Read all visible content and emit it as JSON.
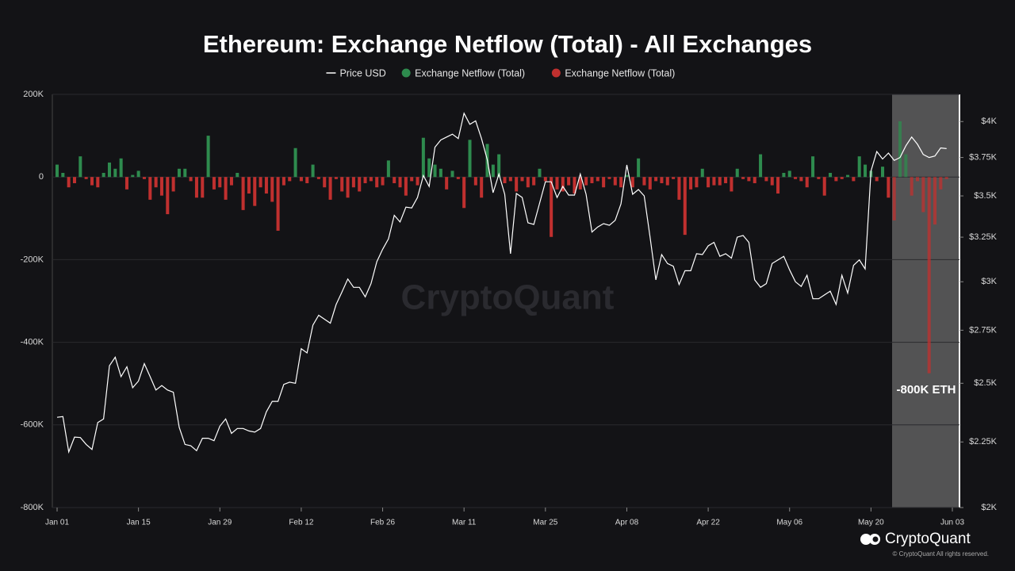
{
  "chart_data": {
    "type": "bar-line",
    "title": "Ethereum: Exchange Netflow (Total) - All Exchanges",
    "annotation": "-800K ETH",
    "watermark": "CryptoQuant",
    "brand": "CryptoQuant",
    "copyright": "© CryptoQuant All rights reserved.",
    "grid": true,
    "y2log": true,
    "categories": [
      "Jan 01",
      null,
      null,
      null,
      null,
      null,
      null,
      null,
      null,
      null,
      null,
      null,
      null,
      null,
      "Jan 15",
      null,
      null,
      null,
      null,
      null,
      null,
      null,
      null,
      null,
      null,
      null,
      null,
      null,
      "Jan 29",
      null,
      null,
      null,
      null,
      null,
      null,
      null,
      null,
      null,
      null,
      null,
      null,
      null,
      "Feb 12",
      null,
      null,
      null,
      null,
      null,
      null,
      null,
      null,
      null,
      null,
      null,
      null,
      null,
      "Feb 26",
      null,
      null,
      null,
      null,
      null,
      null,
      null,
      null,
      null,
      null,
      null,
      null,
      null,
      "Mar 11",
      null,
      null,
      null,
      null,
      null,
      null,
      null,
      null,
      null,
      null,
      null,
      null,
      null,
      "Mar 25",
      null,
      null,
      null,
      null,
      null,
      null,
      null,
      null,
      null,
      null,
      null,
      null,
      null,
      "Apr 08",
      null,
      null,
      null,
      null,
      null,
      null,
      null,
      null,
      null,
      null,
      null,
      null,
      null,
      "Apr 22",
      null,
      null,
      null,
      null,
      null,
      null,
      null,
      null,
      null,
      null,
      null,
      null,
      null,
      "May 06",
      null,
      null,
      null,
      null,
      null,
      null,
      null,
      null,
      null,
      null,
      null,
      null,
      null,
      "May 20",
      null,
      null,
      null,
      null,
      null,
      null,
      null,
      null,
      null,
      null,
      null,
      null,
      null,
      "Jun 03"
    ],
    "ylim": [
      -800000,
      200000
    ],
    "yticks": [
      {
        "value": 200000,
        "label": "200K"
      },
      0,
      {
        "value": -200000,
        "label": "-200K"
      },
      {
        "value": -400000,
        "label": "-400K"
      },
      {
        "value": -600000,
        "label": "-600K"
      },
      {
        "value": -800000,
        "label": "-800K"
      }
    ],
    "y2lim": [
      2000,
      4200
    ],
    "y2ticks": [
      {
        "value": 4000,
        "label": "$4K"
      },
      {
        "value": 3750,
        "label": "$3.75K"
      },
      {
        "value": 3500,
        "label": "$3.5K"
      },
      {
        "value": 3250,
        "label": "$3.25K"
      },
      {
        "value": 3000,
        "label": "$3K"
      },
      {
        "value": 2750,
        "label": "$2.75K"
      },
      {
        "value": 2500,
        "label": "$2.5K"
      },
      {
        "value": 2250,
        "label": "$2.25K"
      },
      {
        "value": 2000,
        "label": "$2K"
      }
    ],
    "series": [
      {
        "name": "Price USD",
        "color": "#ffffff",
        "kind": "line",
        "axis": "y2",
        "values": [
          2352,
          2355,
          2210,
          2270,
          2268,
          2240,
          2220,
          2330,
          2345,
          2580,
          2620,
          2530,
          2575,
          2480,
          2510,
          2590,
          2530,
          2470,
          2490,
          2470,
          2460,
          2310,
          2240,
          2235,
          2215,
          2265,
          2265,
          2255,
          2315,
          2345,
          2285,
          2305,
          2305,
          2295,
          2290,
          2305,
          2375,
          2420,
          2420,
          2495,
          2505,
          2500,
          2660,
          2640,
          2775,
          2825,
          2805,
          2785,
          2880,
          2945,
          3015,
          2970,
          2970,
          2920,
          2990,
          3110,
          3180,
          3240,
          3380,
          3340,
          3430,
          3425,
          3490,
          3630,
          3560,
          3820,
          3870,
          3890,
          3910,
          3880,
          4060,
          3980,
          4005,
          3880,
          3735,
          3520,
          3640,
          3510,
          3155,
          3515,
          3490,
          3335,
          3325,
          3455,
          3590,
          3590,
          3490,
          3560,
          3505,
          3505,
          3640,
          3510,
          3280,
          3310,
          3330,
          3320,
          3350,
          3450,
          3700,
          3510,
          3540,
          3500,
          3250,
          3010,
          3150,
          3100,
          3085,
          2985,
          3060,
          3060,
          3155,
          3150,
          3200,
          3220,
          3140,
          3155,
          3130,
          3250,
          3260,
          3220,
          3010,
          2970,
          2990,
          3100,
          3120,
          3140,
          3065,
          3000,
          2975,
          3035,
          2910,
          2910,
          2930,
          2950,
          2880,
          3035,
          2940,
          3090,
          3120,
          3070,
          3660,
          3790,
          3740,
          3780,
          3730,
          3750,
          3830,
          3890,
          3840,
          3770,
          3750,
          3760,
          3815,
          3810,
          null
        ]
      },
      {
        "name": "Exchange Netflow (Total)",
        "color": "#2e8b4e",
        "kind": "bar",
        "values": [
          30000,
          10000,
          null,
          null,
          50000,
          null,
          null,
          null,
          10000,
          35000,
          20000,
          45000,
          null,
          5000,
          15000,
          null,
          null,
          null,
          null,
          null,
          null,
          20000,
          20000,
          null,
          null,
          null,
          100000,
          null,
          null,
          null,
          null,
          10000,
          null,
          null,
          null,
          null,
          null,
          null,
          null,
          null,
          null,
          70000,
          null,
          null,
          30000,
          null,
          null,
          null,
          null,
          null,
          null,
          null,
          null,
          null,
          null,
          null,
          null,
          40000,
          null,
          null,
          null,
          null,
          null,
          95000,
          45000,
          30000,
          20000,
          null,
          15000,
          null,
          null,
          90000,
          null,
          null,
          80000,
          30000,
          55000,
          null,
          null,
          null,
          null,
          null,
          null,
          20000,
          null,
          null,
          null,
          null,
          null,
          null,
          null,
          null,
          null,
          null,
          null,
          null,
          null,
          null,
          5000,
          null,
          45000,
          null,
          null,
          null,
          null,
          null,
          null,
          null,
          null,
          null,
          null,
          20000,
          null,
          null,
          null,
          null,
          null,
          20000,
          null,
          null,
          null,
          55000,
          null,
          null,
          null,
          10000,
          15000,
          null,
          null,
          null,
          50000,
          null,
          null,
          10000,
          null,
          null,
          5000,
          null,
          50000,
          30000,
          15000,
          null,
          25000,
          null,
          null,
          135000,
          55000,
          null,
          null,
          null,
          null,
          null,
          null,
          null,
          null
        ]
      },
      {
        "name": "Exchange Netflow (Total)",
        "color": "#c0302f",
        "kind": "bar",
        "values": [
          null,
          null,
          -25000,
          -15000,
          null,
          -5000,
          -20000,
          -25000,
          null,
          null,
          null,
          null,
          -30000,
          null,
          null,
          -5000,
          -55000,
          -25000,
          -45000,
          -90000,
          -35000,
          null,
          null,
          -10000,
          -50000,
          -50000,
          null,
          -30000,
          -25000,
          -55000,
          -20000,
          null,
          -80000,
          -40000,
          -70000,
          -25000,
          -40000,
          -60000,
          -130000,
          -20000,
          -10000,
          null,
          -10000,
          -15000,
          null,
          -5000,
          -25000,
          -55000,
          -5000,
          -35000,
          -50000,
          -25000,
          -35000,
          -15000,
          -10000,
          -25000,
          -20000,
          null,
          -15000,
          -25000,
          -45000,
          -10000,
          -20000,
          null,
          null,
          null,
          null,
          -30000,
          null,
          -5000,
          -75000,
          null,
          -20000,
          -50000,
          null,
          null,
          null,
          -15000,
          -10000,
          -35000,
          -10000,
          -25000,
          -20000,
          null,
          -10000,
          -145000,
          -30000,
          -35000,
          -20000,
          -40000,
          -30000,
          -20000,
          -15000,
          -10000,
          -25000,
          -5000,
          -20000,
          -25000,
          null,
          -25000,
          null,
          -20000,
          -30000,
          -10000,
          -15000,
          -20000,
          -5000,
          -55000,
          -140000,
          -30000,
          -25000,
          null,
          -25000,
          -20000,
          -20000,
          -15000,
          -35000,
          null,
          -5000,
          -10000,
          -15000,
          null,
          -10000,
          -20000,
          -40000,
          null,
          null,
          -5000,
          -10000,
          -25000,
          null,
          -5000,
          -45000,
          null,
          -10000,
          -5000,
          null,
          -10000,
          null,
          null,
          null,
          -10000,
          null,
          -50000,
          -105000,
          null,
          null,
          -45000,
          -10000,
          -85000,
          -475000,
          -115000,
          -30000,
          -5000,
          null
        ]
      }
    ]
  }
}
